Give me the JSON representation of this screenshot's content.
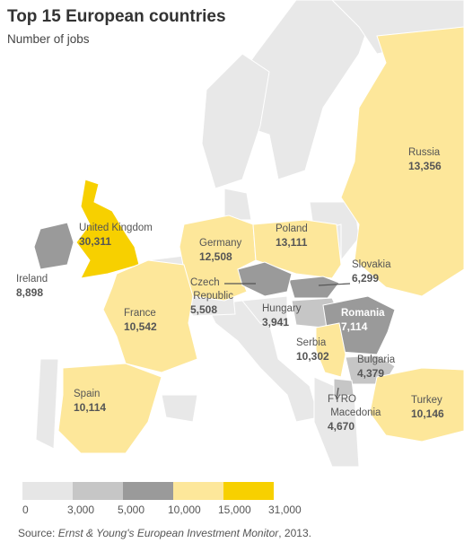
{
  "chart_data": {
    "type": "choropleth",
    "title": "Top 15 European countries",
    "subtitle": "Number of jobs",
    "categories": [
      "Russia",
      "United Kingdom",
      "Ireland",
      "Germany",
      "Poland",
      "Slovakia",
      "Czech Republic",
      "France",
      "Hungary",
      "Romania",
      "Serbia",
      "Bulgaria",
      "Spain",
      "FYRO Macedonia",
      "Turkey"
    ],
    "values": [
      13356,
      30311,
      8898,
      12508,
      13111,
      6299,
      5508,
      10542,
      3941,
      7114,
      10302,
      4379,
      10114,
      4670,
      10146
    ],
    "value_labels": [
      "13,356",
      "30,311",
      "8,898",
      "12,508",
      "13,111",
      "6,299",
      "5,508",
      "10,542",
      "3,941",
      "7,114",
      "10,302",
      "4,379",
      "10,114",
      "4,670",
      "10,146"
    ],
    "legend": {
      "ticks": [
        0,
        {
          "value": 3000,
          "label": "3,000"
        },
        {
          "value": 5000,
          "label": "5,000"
        },
        {
          "value": 10000,
          "label": "10,000"
        },
        {
          "value": 15000,
          "label": "15,000"
        },
        {
          "value": 31000,
          "label": "31,000"
        }
      ],
      "colors": [
        "#e6e6e6",
        "#c6c6c6",
        "#9a9a9a",
        "#fde79a",
        "#f7d000"
      ]
    },
    "source": {
      "prefix": "Source: ",
      "work": "Ernst & Young's European Investment Monitor",
      "suffix": ", 2013."
    }
  }
}
